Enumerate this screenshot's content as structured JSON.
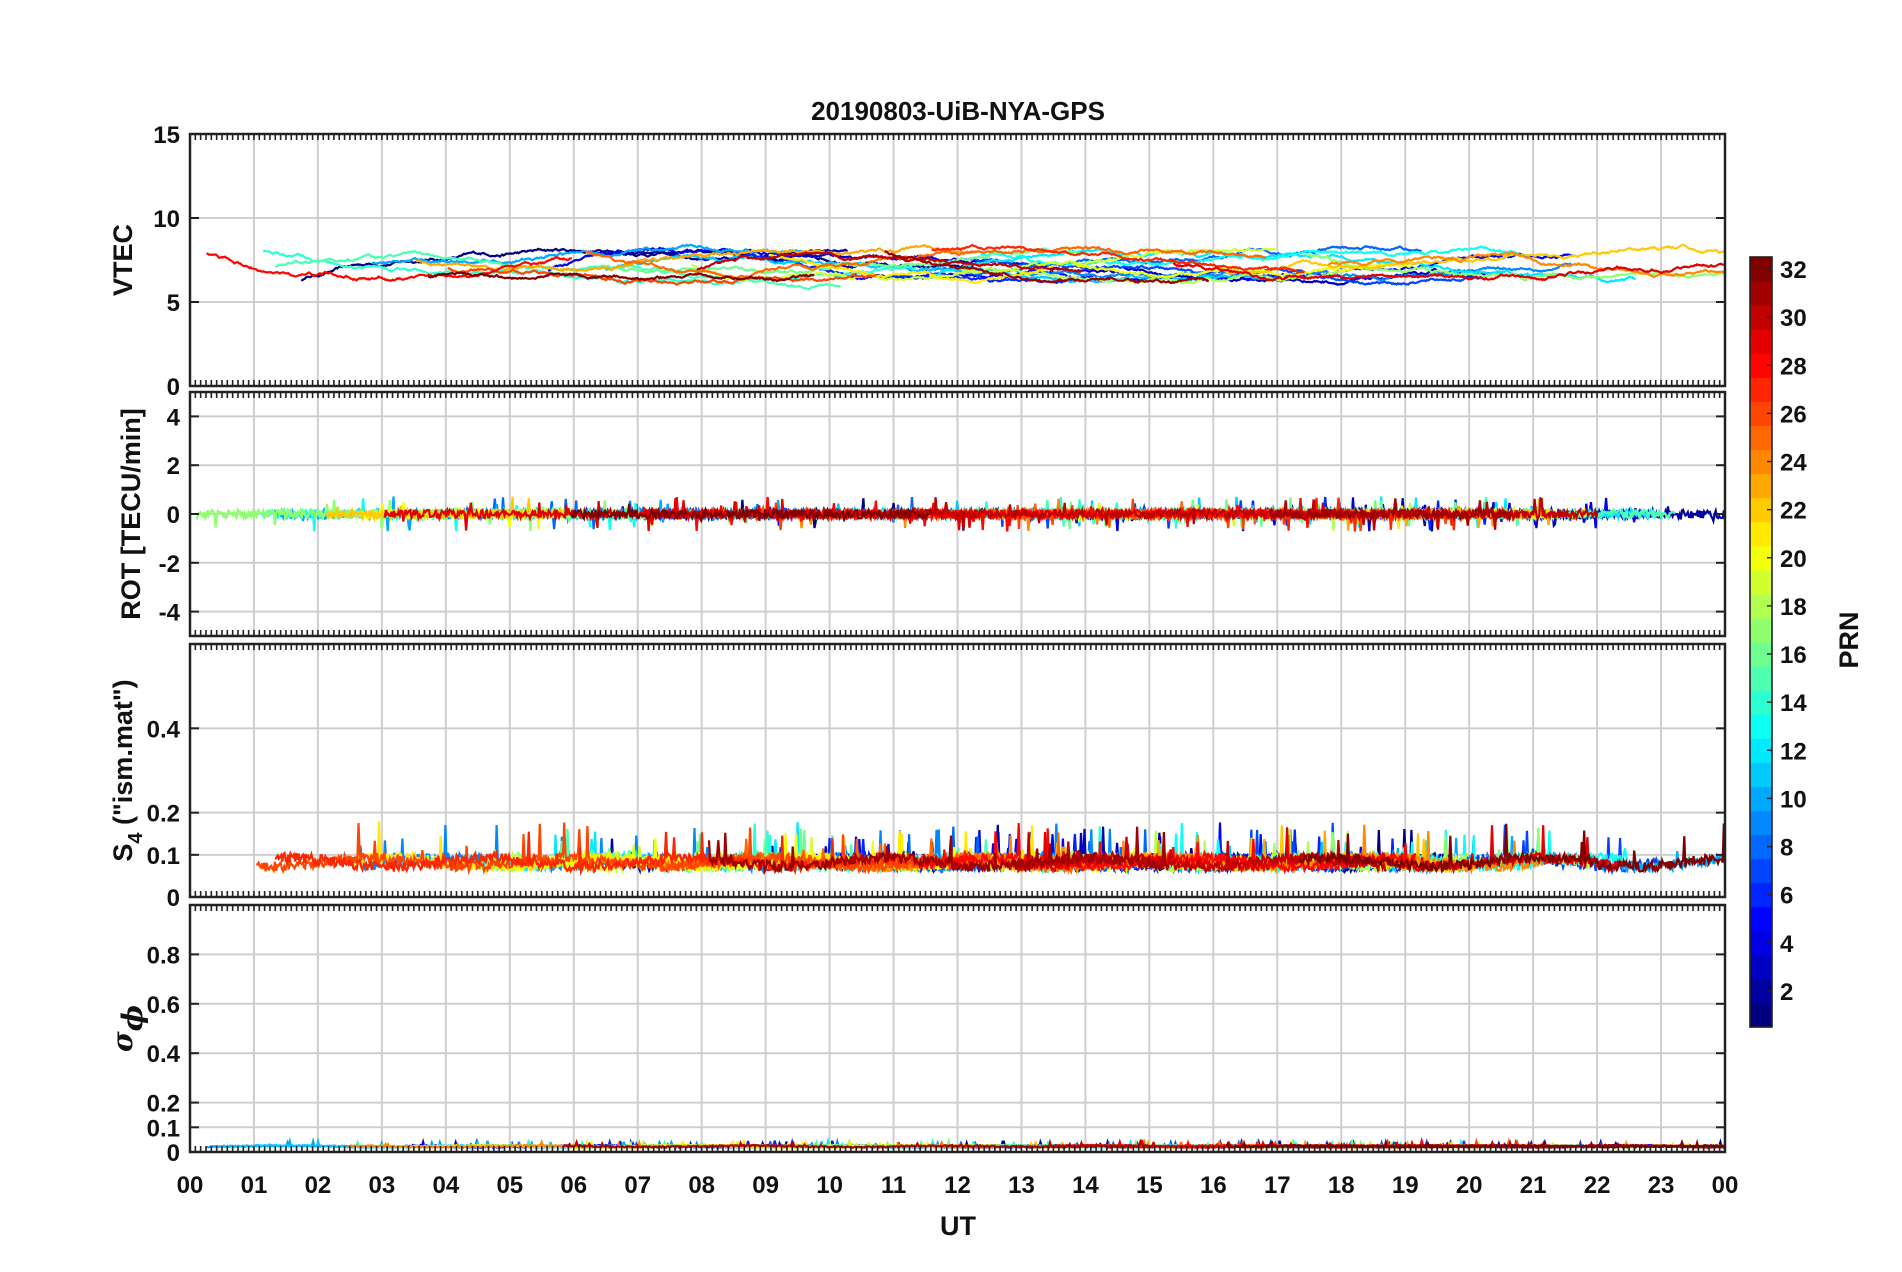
{
  "chart_data": {
    "type": "line",
    "title": "20190803-UiB-NYA-GPS",
    "xlabel": "UT",
    "x_ticks": [
      "00",
      "01",
      "02",
      "03",
      "04",
      "05",
      "06",
      "07",
      "08",
      "09",
      "10",
      "11",
      "12",
      "13",
      "14",
      "15",
      "16",
      "17",
      "18",
      "19",
      "20",
      "21",
      "22",
      "23",
      "00"
    ],
    "xlim_hours": [
      0,
      24
    ],
    "grid": true,
    "colormap": "jet",
    "colorbar": {
      "label": "PRN",
      "range": [
        1,
        32
      ],
      "ticks": [
        "2",
        "4",
        "6",
        "8",
        "10",
        "12",
        "14",
        "16",
        "18",
        "20",
        "22",
        "24",
        "26",
        "28",
        "30",
        "32"
      ],
      "placement": "right"
    },
    "panels": [
      {
        "id": "vtec",
        "ylabel": "VTEC",
        "ylim": [
          0,
          15
        ],
        "yticks": [
          0,
          5,
          10,
          15
        ],
        "ytick_labels": [
          "0",
          "5",
          "10",
          "15"
        ],
        "baseline": 7.2,
        "amplitude": 0.9,
        "noise": 0.12,
        "series_count": 32
      },
      {
        "id": "rot",
        "ylabel": "ROT [TECU/min]",
        "ylim": [
          -5,
          5
        ],
        "yticks": [
          -4,
          -2,
          0,
          2,
          4
        ],
        "ytick_labels": [
          "-4",
          "-2",
          "0",
          "2",
          "4"
        ],
        "baseline": 0.0,
        "amplitude": 0.05,
        "noise": 0.18,
        "series_count": 32
      },
      {
        "id": "s4",
        "ylabel_main": "S",
        "ylabel_sub": "4",
        "ylabel_rest": " (\"ism.mat\")",
        "ylim": [
          0,
          0.6
        ],
        "yticks": [
          0,
          0.1,
          0.2,
          0.4
        ],
        "ytick_labels": [
          "0",
          "0.1",
          "0.2",
          "0.4"
        ],
        "baseline": 0.07,
        "amplitude": 0.02,
        "noise": 0.025,
        "series_count": 32
      },
      {
        "id": "sigma_phi",
        "ylabel_main": "σ",
        "ylabel_sub": "ϕ",
        "ylim": [
          0,
          1
        ],
        "yticks": [
          0,
          0.1,
          0.2,
          0.4,
          0.6,
          0.8
        ],
        "ytick_labels": [
          "0",
          "0.1",
          "0.2",
          "0.4",
          "0.6",
          "0.8"
        ],
        "baseline": 0.02,
        "amplitude": 0.005,
        "noise": 0.006,
        "series_count": 32
      }
    ]
  }
}
